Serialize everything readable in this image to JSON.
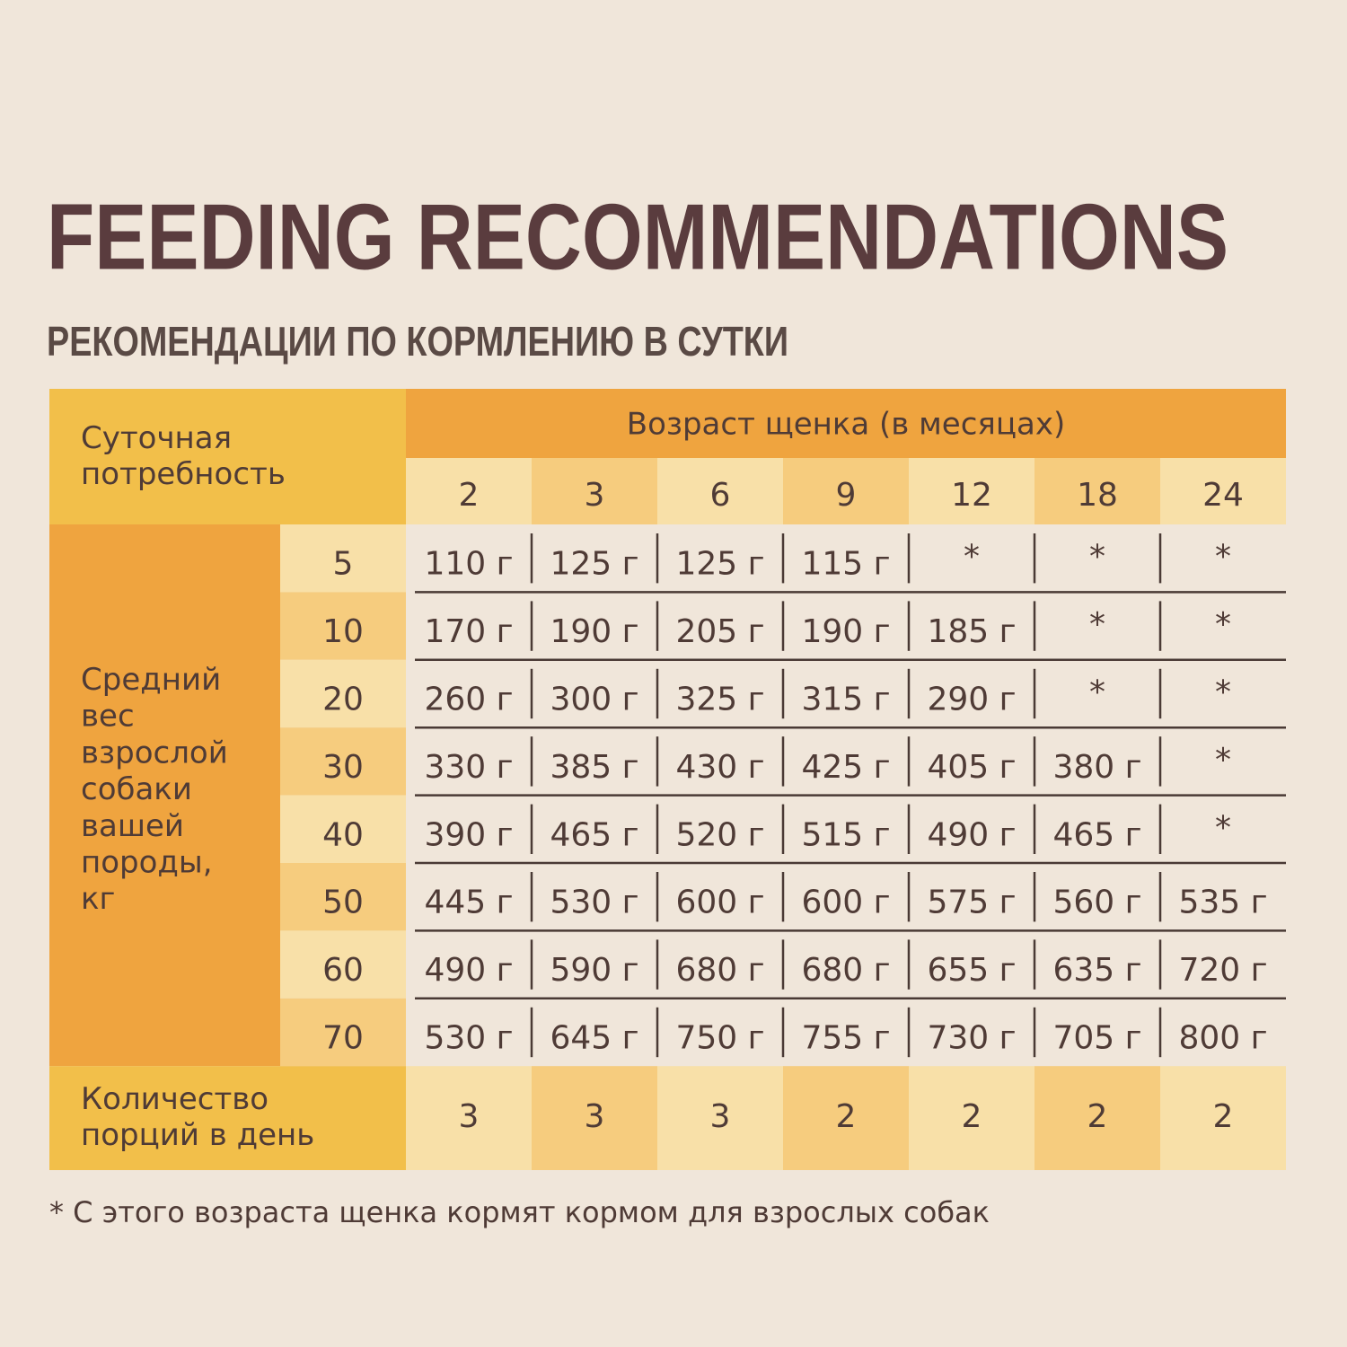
{
  "title": "FEEDING RECOMMENDATIONS",
  "subtitle": "РЕКОМЕНДАЦИИ ПО КОРМЛЕНИЮ В СУТКИ",
  "table": {
    "corner": "Суточная\nпотребность",
    "age_header": "Возраст щенка (в месяцах)",
    "ages": [
      "2",
      "3",
      "6",
      "9",
      "12",
      "18",
      "24"
    ],
    "weight_header": "Средний\nвес\nвзрослой\nсобаки\nвашей\nпороды,\nкг",
    "rows": [
      {
        "weight": "5",
        "cells": [
          "110 г",
          "125 г",
          "125 г",
          "115 г",
          "*",
          "*",
          "*"
        ]
      },
      {
        "weight": "10",
        "cells": [
          "170 г",
          "190 г",
          "205 г",
          "190 г",
          "185 г",
          "*",
          "*"
        ]
      },
      {
        "weight": "20",
        "cells": [
          "260 г",
          "300 г",
          "325 г",
          "315 г",
          "290 г",
          "*",
          "*"
        ]
      },
      {
        "weight": "30",
        "cells": [
          "330 г",
          "385 г",
          "430 г",
          "425 г",
          "405 г",
          "380 г",
          "*"
        ]
      },
      {
        "weight": "40",
        "cells": [
          "390 г",
          "465 г",
          "520 г",
          "515 г",
          "490 г",
          "465 г",
          "*"
        ]
      },
      {
        "weight": "50",
        "cells": [
          "445 г",
          "530 г",
          "600 г",
          "600 г",
          "575 г",
          "560 г",
          "535 г"
        ]
      },
      {
        "weight": "60",
        "cells": [
          "490 г",
          "590 г",
          "680 г",
          "680 г",
          "655 г",
          "635 г",
          "720 г"
        ]
      },
      {
        "weight": "70",
        "cells": [
          "530 г",
          "645 г",
          "750 г",
          "755 г",
          "730 г",
          "705 г",
          "800 г"
        ]
      }
    ],
    "portions_label": "Количество\nпорций в день",
    "portions": [
      "3",
      "3",
      "3",
      "2",
      "2",
      "2",
      "2"
    ]
  },
  "footnote": "* С этого возраста щенка кормят кормом для взрослых собак"
}
